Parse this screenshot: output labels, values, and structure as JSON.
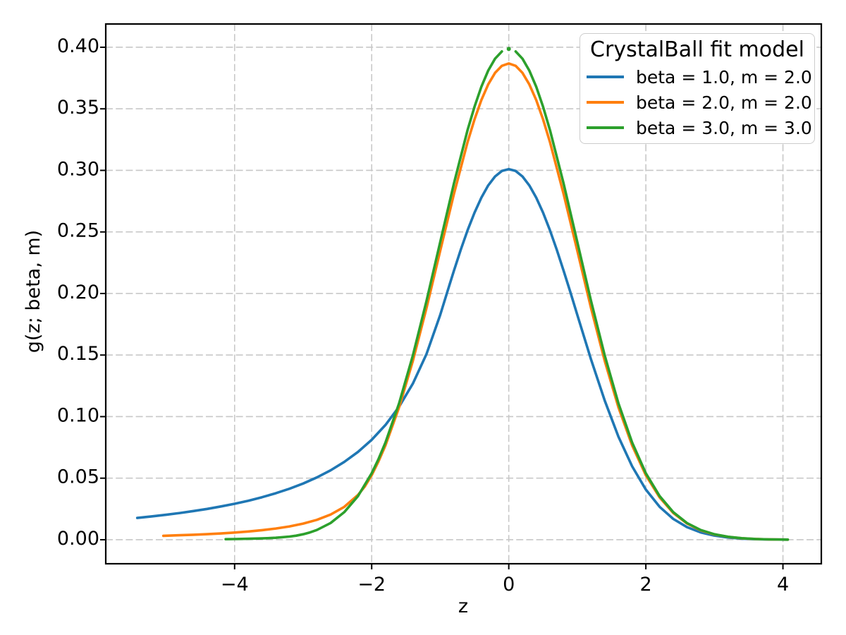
{
  "chart_data": {
    "type": "line",
    "title": "",
    "legend_title": "CrystalBall fit model",
    "legend_position": "upper right",
    "xlabel": "z",
    "ylabel": "g(z; beta, m)",
    "xlim": [
      -5.88,
      4.56
    ],
    "ylim": [
      -0.0195,
      0.4189
    ],
    "grid": {
      "visible": true,
      "style": "dashed",
      "color": "#c8c8c8"
    },
    "xticks": {
      "values": [
        -4,
        -2,
        0,
        2,
        4
      ],
      "labels": [
        "−4",
        "−2",
        "0",
        "2",
        "4"
      ]
    },
    "yticks": {
      "values": [
        0.0,
        0.05,
        0.1,
        0.15,
        0.2,
        0.25,
        0.3,
        0.35,
        0.4
      ],
      "labels": [
        "0.00",
        "0.05",
        "0.10",
        "0.15",
        "0.20",
        "0.25",
        "0.30",
        "0.35",
        "0.40"
      ]
    },
    "series": [
      {
        "name": "beta = 1.0, m = 2.0",
        "color": "#1f77b4",
        "beta": 1.0,
        "m": 2.0,
        "peak_value": 0.30103,
        "segments": [
          [
            [
              -5.42,
              0.01772
            ],
            [
              -5.2,
              0.019
            ],
            [
              -5.0,
              0.02029
            ],
            [
              -4.8,
              0.02171
            ],
            [
              -4.6,
              0.02329
            ],
            [
              -4.4,
              0.02505
            ],
            [
              -4.2,
              0.02701
            ],
            [
              -4.0,
              0.02922
            ],
            [
              -3.8,
              0.0317
            ],
            [
              -3.6,
              0.03452
            ],
            [
              -3.4,
              0.03773
            ],
            [
              -3.2,
              0.0414
            ],
            [
              -3.0,
              0.04565
            ],
            [
              -2.8,
              0.05058
            ],
            [
              -2.6,
              0.05636
            ],
            [
              -2.4,
              0.06318
            ],
            [
              -2.2,
              0.07133
            ],
            [
              -2.0,
              0.08115
            ],
            [
              -1.8,
              0.09316
            ],
            [
              -1.6,
              0.10804
            ],
            [
              -1.4,
              0.1268
            ],
            [
              -1.2,
              0.1509
            ],
            [
              -1.0,
              0.18258
            ],
            [
              -0.9,
              0.20078
            ],
            [
              -0.8,
              0.21858
            ],
            [
              -0.7,
              0.23562
            ],
            [
              -0.6,
              0.25144
            ],
            [
              -0.5,
              0.26566
            ],
            [
              -0.4,
              0.27788
            ],
            [
              -0.3,
              0.28778
            ],
            [
              -0.2,
              0.29507
            ],
            [
              -0.1,
              0.29953
            ],
            [
              0.0,
              0.30103
            ],
            [
              0.1,
              0.29953
            ],
            [
              0.2,
              0.29507
            ],
            [
              0.3,
              0.28778
            ],
            [
              0.4,
              0.27788
            ],
            [
              0.5,
              0.26566
            ],
            [
              0.6,
              0.25144
            ],
            [
              0.7,
              0.23562
            ],
            [
              0.8,
              0.21858
            ],
            [
              0.9,
              0.20078
            ],
            [
              1.0,
              0.18258
            ],
            [
              1.2,
              0.14652
            ],
            [
              1.4,
              0.11298
            ],
            [
              1.6,
              0.0837
            ],
            [
              1.8,
              0.05957
            ],
            [
              2.0,
              0.04074
            ],
            [
              2.2,
              0.02677
            ],
            [
              2.4,
              0.0169
            ],
            [
              2.6,
              0.01025
            ],
            [
              2.8,
              0.00597
            ],
            [
              3.0,
              0.00334
            ],
            [
              3.2,
              0.0018
            ],
            [
              3.4,
              0.00093
            ],
            [
              3.6,
              0.00046
            ],
            [
              3.8,
              0.00022
            ],
            [
              4.07,
              8e-05
            ]
          ]
        ]
      },
      {
        "name": "beta = 2.0, m = 2.0",
        "color": "#ff7f0e",
        "beta": 2.0,
        "m": 2.0,
        "peak_value": 0.38686,
        "segments": [
          [
            [
              -5.04,
              0.00321
            ],
            [
              -4.8,
              0.00363
            ],
            [
              -4.6,
              0.00404
            ],
            [
              -4.4,
              0.00453
            ],
            [
              -4.2,
              0.00511
            ],
            [
              -4.0,
              0.00582
            ],
            [
              -3.8,
              0.00668
            ],
            [
              -3.6,
              0.00775
            ],
            [
              -3.4,
              0.00909
            ],
            [
              -3.2,
              0.01082
            ],
            [
              -3.0,
              0.01309
            ],
            [
              -2.8,
              0.01616
            ],
            [
              -2.6,
              0.02045
            ],
            [
              -2.4,
              0.02671
            ],
            [
              -2.2,
              0.03636
            ],
            [
              -2.1,
              0.04327
            ],
            [
              -2.0,
              0.05236
            ],
            [
              -1.9,
              0.06363
            ],
            [
              -1.8,
              0.07656
            ],
            [
              -1.6,
              0.10756
            ],
            [
              -1.4,
              0.14519
            ],
            [
              -1.2,
              0.1883
            ],
            [
              -1.0,
              0.23464
            ],
            [
              -0.8,
              0.28092
            ],
            [
              -0.6,
              0.32313
            ],
            [
              -0.5,
              0.3414
            ],
            [
              -0.4,
              0.35712
            ],
            [
              -0.3,
              0.36983
            ],
            [
              -0.2,
              0.3792
            ],
            [
              -0.1,
              0.38493
            ],
            [
              0.0,
              0.38686
            ],
            [
              0.1,
              0.38493
            ],
            [
              0.2,
              0.3792
            ],
            [
              0.3,
              0.36983
            ],
            [
              0.4,
              0.35712
            ],
            [
              0.5,
              0.3414
            ],
            [
              0.6,
              0.32313
            ],
            [
              0.8,
              0.28092
            ],
            [
              1.0,
              0.23464
            ],
            [
              1.2,
              0.1883
            ],
            [
              1.4,
              0.14519
            ],
            [
              1.6,
              0.10756
            ],
            [
              1.8,
              0.07656
            ],
            [
              2.0,
              0.05236
            ],
            [
              2.2,
              0.0344
            ],
            [
              2.4,
              0.02172
            ],
            [
              2.6,
              0.01317
            ],
            [
              2.8,
              0.00768
            ],
            [
              3.0,
              0.0043
            ],
            [
              3.2,
              0.00231
            ],
            [
              3.4,
              0.0012
            ],
            [
              3.6,
              0.00059
            ],
            [
              3.8,
              0.00028
            ],
            [
              4.07,
              0.0001
            ]
          ]
        ]
      },
      {
        "name": "beta = 3.0, m = 3.0",
        "color": "#2ca02c",
        "beta": 3.0,
        "m": 3.0,
        "peak_value": 0.3986,
        "marker_point": [
          0.0,
          0.3986
        ],
        "segments": [
          [
            [
              -4.13,
              0.00046
            ],
            [
              -4.0,
              0.00055
            ],
            [
              -3.8,
              0.00076
            ],
            [
              -3.6,
              0.00108
            ],
            [
              -3.4,
              0.00161
            ],
            [
              -3.2,
              0.00256
            ],
            [
              -3.1,
              0.00333
            ],
            [
              -3.0,
              0.00443
            ],
            [
              -2.9,
              0.00595
            ],
            [
              -2.8,
              0.00791
            ],
            [
              -2.6,
              0.01357
            ],
            [
              -2.4,
              0.02238
            ],
            [
              -2.2,
              0.03544
            ],
            [
              -2.0,
              0.05394
            ],
            [
              -1.9,
              0.06556
            ],
            [
              -1.8,
              0.07888
            ],
            [
              -1.6,
              0.11083
            ],
            [
              -1.4,
              0.1496
            ],
            [
              -1.2,
              0.19402
            ],
            [
              -1.0,
              0.24176
            ],
            [
              -0.8,
              0.28944
            ],
            [
              -0.6,
              0.33294
            ],
            [
              -0.5,
              0.35176
            ],
            [
              -0.4,
              0.36795
            ],
            [
              -0.3,
              0.38106
            ],
            [
              -0.2,
              0.3907
            ],
            [
              -0.1,
              0.39661
            ]
          ],
          [
            [
              0.1,
              0.39661
            ],
            [
              0.2,
              0.3907
            ],
            [
              0.3,
              0.38106
            ],
            [
              0.4,
              0.36795
            ],
            [
              0.5,
              0.35176
            ],
            [
              0.6,
              0.33294
            ],
            [
              0.8,
              0.28944
            ],
            [
              1.0,
              0.24176
            ],
            [
              1.2,
              0.19402
            ],
            [
              1.4,
              0.1496
            ],
            [
              1.6,
              0.11083
            ],
            [
              1.8,
              0.07888
            ],
            [
              2.0,
              0.05394
            ],
            [
              2.2,
              0.03544
            ],
            [
              2.4,
              0.02238
            ],
            [
              2.6,
              0.01357
            ],
            [
              2.8,
              0.00791
            ],
            [
              3.0,
              0.00443
            ],
            [
              3.2,
              0.00238
            ],
            [
              3.4,
              0.00123
            ],
            [
              3.6,
              0.00061
            ],
            [
              3.8,
              0.00029
            ],
            [
              4.07,
              0.0001
            ]
          ]
        ]
      }
    ]
  }
}
